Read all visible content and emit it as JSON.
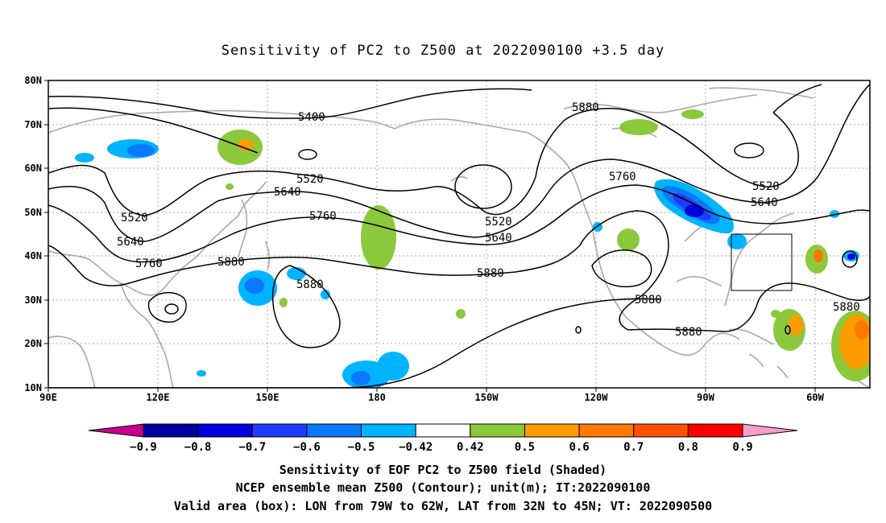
{
  "title": "Sensitivity of PC2 to Z500 at 2022090100 +3.5 day",
  "map": {
    "lat_labels": [
      "80N",
      "70N",
      "60N",
      "50N",
      "40N",
      "30N",
      "20N",
      "10N"
    ],
    "lon_labels": [
      "90E",
      "120E",
      "150E",
      "180",
      "150W",
      "120W",
      "90W",
      "60W"
    ],
    "contour_labels": [
      "5400",
      "5520",
      "5640",
      "5760",
      "5880",
      "5520",
      "5640",
      "5760",
      "5880",
      "5880",
      "5880",
      "5520",
      "5640",
      "5760",
      "5880",
      "5880",
      "5520",
      "5640",
      "5880"
    ],
    "valid_box": {
      "lon_range": [
        "79W",
        "62W"
      ],
      "lat_range": [
        "32N",
        "45N"
      ]
    }
  },
  "colorbar": {
    "labels": [
      "−0.9",
      "−0.8",
      "−0.7",
      "−0.6",
      "−0.5",
      "−0.42",
      "0.42",
      "0.5",
      "0.6",
      "0.7",
      "0.8",
      "0.9"
    ],
    "colors": [
      "#0000a0",
      "#0000dd",
      "#1e3cff",
      "#0a78ff",
      "#00b4ff",
      "#ffffff",
      "#8cc83c",
      "#ff9c00",
      "#ff7800",
      "#ff5000",
      "#ff0000"
    ],
    "low_arrow_color": "#c8008c",
    "high_arrow_color": "#f5a0c8"
  },
  "captions": {
    "line1": "Sensitivity of EOF PC2 to Z500 field (Shaded)",
    "line2": "NCEP ensemble mean Z500 (Contour); unit(m); IT:2022090100",
    "line3": "Valid area (box): LON from 79W to 62W, LAT from 32N to 45N; VT: 2022090500"
  }
}
